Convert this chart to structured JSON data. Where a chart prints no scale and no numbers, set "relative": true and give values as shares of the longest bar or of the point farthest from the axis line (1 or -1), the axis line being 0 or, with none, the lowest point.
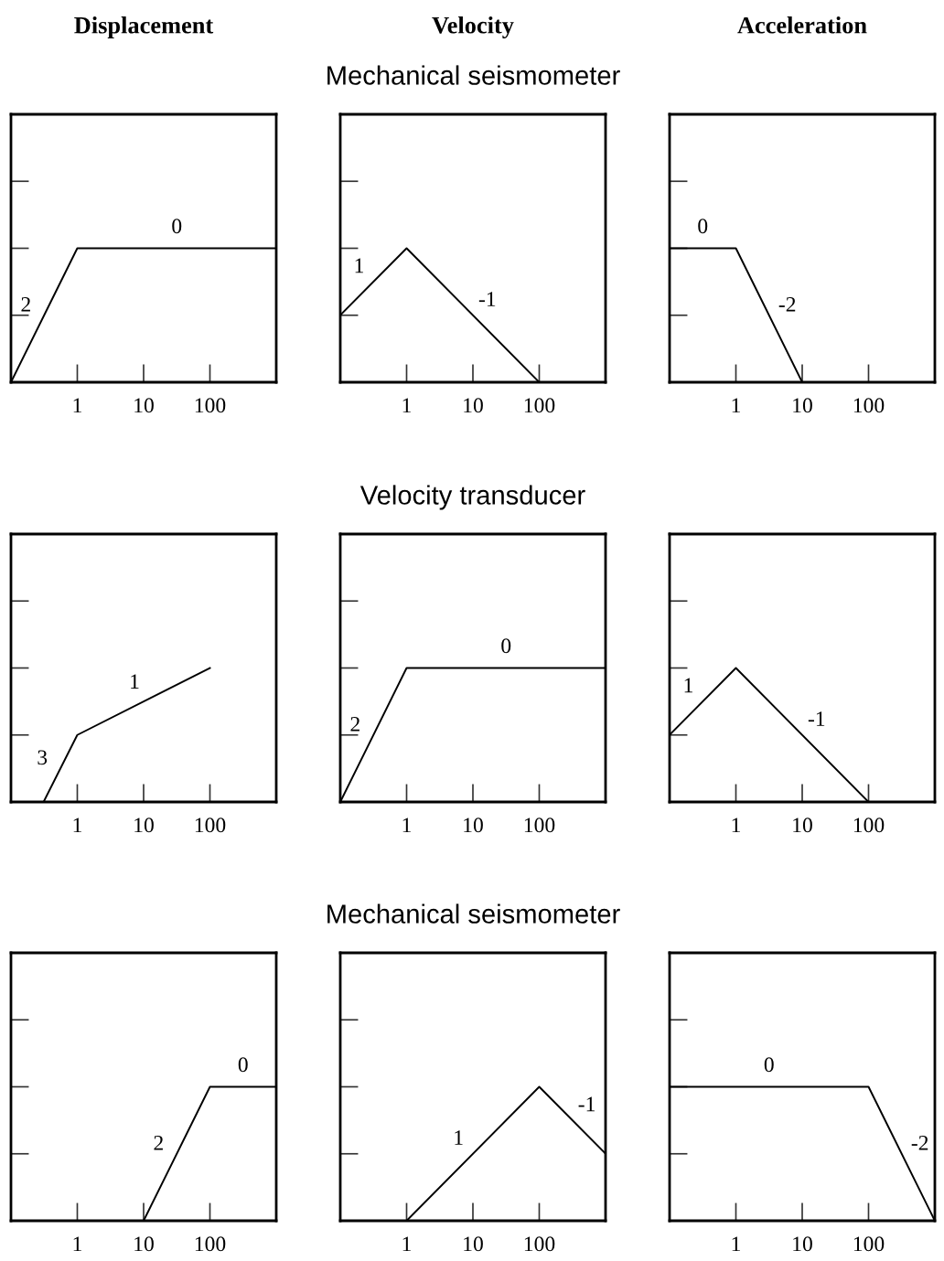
{
  "chart_data": [
    {
      "type": "line",
      "title": "Displacement",
      "relative": true,
      "log": "x",
      "xlim": [
        0.1,
        1000
      ],
      "xticks": [
        1,
        10,
        100
      ],
      "tick_labels": "x",
      "marker": "none",
      "line_style": "solid",
      "grid": false,
      "legend": false,
      "series": [
        {
          "x": [
            0.1,
            1,
            1000
          ],
          "values": [
            0,
            1,
            1
          ],
          "color": "#000000"
        }
      ],
      "annotations": [
        "2",
        "0"
      ]
    },
    {
      "type": "line",
      "title": "Velocity",
      "subtitle": "Mechanical seismometer",
      "relative": true,
      "log": "x",
      "xlim": [
        0.1,
        1000
      ],
      "xticks": [
        1,
        10,
        100
      ],
      "tick_labels": "x",
      "marker": "none",
      "line_style": "solid",
      "grid": false,
      "legend": false,
      "series": [
        {
          "x": [
            0.1,
            1,
            100
          ],
          "values": [
            0.5,
            1,
            0
          ],
          "color": "#000000"
        }
      ],
      "annotations": [
        "1",
        "-1"
      ]
    },
    {
      "type": "line",
      "title": "Acceleration",
      "relative": true,
      "log": "x",
      "xlim": [
        0.1,
        1000
      ],
      "xticks": [
        1,
        10,
        100
      ],
      "tick_labels": "x",
      "marker": "none",
      "line_style": "solid",
      "grid": false,
      "legend": false,
      "series": [
        {
          "x": [
            0.1,
            1,
            10
          ],
          "values": [
            1,
            1,
            0
          ],
          "color": "#000000"
        }
      ],
      "annotations": [
        "0",
        "-2"
      ]
    },
    {
      "type": "line",
      "relative": true,
      "log": "x",
      "xlim": [
        0.1,
        1000
      ],
      "xticks": [
        1,
        10,
        100
      ],
      "tick_labels": "x",
      "marker": "none",
      "line_style": "solid",
      "grid": false,
      "legend": false,
      "series": [
        {
          "x": [
            0.31,
            1,
            100
          ],
          "values": [
            0,
            0.5,
            1
          ],
          "color": "#000000"
        }
      ],
      "annotations": [
        "3",
        "1"
      ]
    },
    {
      "type": "line",
      "subtitle": "Velocity transducer",
      "relative": true,
      "log": "x",
      "xlim": [
        0.1,
        1000
      ],
      "xticks": [
        1,
        10,
        100
      ],
      "tick_labels": "x",
      "marker": "none",
      "line_style": "solid",
      "grid": false,
      "legend": false,
      "series": [
        {
          "x": [
            0.1,
            1,
            1000
          ],
          "values": [
            0,
            1,
            1
          ],
          "color": "#000000"
        }
      ],
      "annotations": [
        "2",
        "0"
      ]
    },
    {
      "type": "line",
      "relative": true,
      "log": "x",
      "xlim": [
        0.1,
        1000
      ],
      "xticks": [
        1,
        10,
        100
      ],
      "tick_labels": "x",
      "marker": "none",
      "line_style": "solid",
      "grid": false,
      "legend": false,
      "series": [
        {
          "x": [
            0.1,
            1,
            100
          ],
          "values": [
            0.5,
            1,
            0
          ],
          "color": "#000000"
        }
      ],
      "annotations": [
        "1",
        "-1"
      ]
    },
    {
      "type": "line",
      "relative": true,
      "log": "x",
      "xlim": [
        0.1,
        1000
      ],
      "xticks": [
        1,
        10,
        100
      ],
      "tick_labels": "x",
      "marker": "none",
      "line_style": "solid",
      "grid": false,
      "legend": false,
      "series": [
        {
          "x": [
            10,
            100,
            1000
          ],
          "values": [
            0,
            1,
            1
          ],
          "color": "#000000"
        }
      ],
      "annotations": [
        "2",
        "0"
      ]
    },
    {
      "type": "line",
      "subtitle": "Mechanical seismometer",
      "relative": true,
      "log": "x",
      "xlim": [
        0.1,
        1000
      ],
      "xticks": [
        1,
        10,
        100
      ],
      "tick_labels": "x",
      "marker": "none",
      "line_style": "solid",
      "grid": false,
      "legend": false,
      "series": [
        {
          "x": [
            1,
            100,
            1000
          ],
          "values": [
            0,
            1,
            0.5
          ],
          "color": "#000000"
        }
      ],
      "annotations": [
        "1",
        "-1"
      ]
    },
    {
      "type": "line",
      "relative": true,
      "log": "x",
      "xlim": [
        0.1,
        1000
      ],
      "xticks": [
        1,
        10,
        100
      ],
      "tick_labels": "x",
      "marker": "none",
      "line_style": "solid",
      "grid": false,
      "legend": false,
      "series": [
        {
          "x": [
            0.1,
            100,
            1000
          ],
          "values": [
            1,
            1,
            0
          ],
          "color": "#000000"
        }
      ],
      "annotations": [
        "0",
        "-2"
      ]
    }
  ]
}
